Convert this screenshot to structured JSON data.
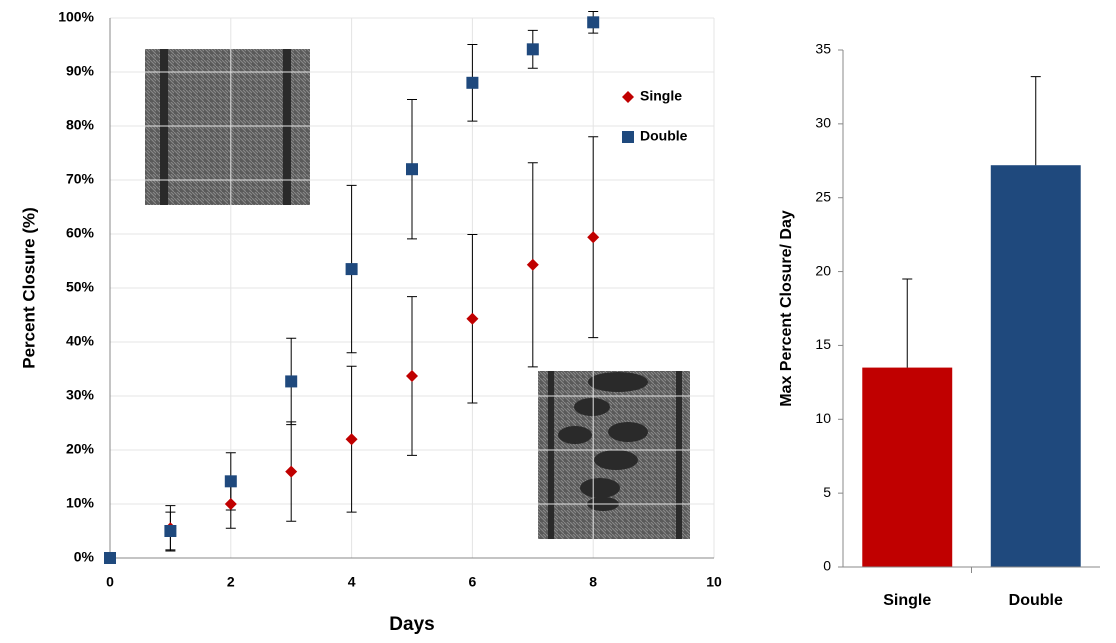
{
  "chart_data": [
    {
      "type": "scatter",
      "xlabel": "Days",
      "ylabel": "Percent Closure (%)",
      "x": [
        0,
        1,
        2,
        3,
        4,
        5,
        6,
        7,
        8
      ],
      "series": [
        {
          "name": "Single",
          "color": "#c00000",
          "marker": "diamond",
          "values": [
            0,
            5.5,
            10,
            16,
            22,
            33.7,
            44.3,
            54.3,
            59.4
          ],
          "errors": [
            0,
            4.2,
            4.5,
            9.2,
            13.5,
            14.7,
            15.6,
            18.9,
            18.6
          ]
        },
        {
          "name": "Double",
          "color": "#1f497d",
          "marker": "square",
          "values": [
            0,
            5,
            14.2,
            32.7,
            53.5,
            72,
            88,
            94.2,
            99.2
          ],
          "errors": [
            0,
            3.5,
            5.3,
            8,
            15.5,
            12.9,
            7.1,
            3.5,
            2
          ]
        }
      ],
      "xlim": [
        0,
        10
      ],
      "xticks": [
        0,
        2,
        4,
        6,
        8,
        10
      ],
      "ylim": [
        0,
        100
      ],
      "yticks": [
        {
          "value": 0,
          "label": "0%"
        },
        {
          "value": 10,
          "label": "10%"
        },
        {
          "value": 20,
          "label": "20%"
        },
        {
          "value": 30,
          "label": "30%"
        },
        {
          "value": 40,
          "label": "40%"
        },
        {
          "value": 50,
          "label": "50%"
        },
        {
          "value": 60,
          "label": "60%"
        },
        {
          "value": 70,
          "label": "70%"
        },
        {
          "value": 80,
          "label": "80%"
        },
        {
          "value": 90,
          "label": "90%"
        },
        {
          "value": 100,
          "label": "100%"
        }
      ],
      "grid": true
    },
    {
      "type": "bar",
      "ylabel": "Max Percent Closure/ Day",
      "categories": [
        "Single",
        "Double"
      ],
      "values": [
        13.5,
        27.2
      ],
      "errors": [
        6,
        6
      ],
      "colors": [
        "#c00000",
        "#1f497d"
      ],
      "ylim": [
        0,
        35
      ],
      "yticks": [
        0,
        5,
        10,
        15,
        20,
        25,
        30,
        35
      ],
      "grid": false
    }
  ]
}
